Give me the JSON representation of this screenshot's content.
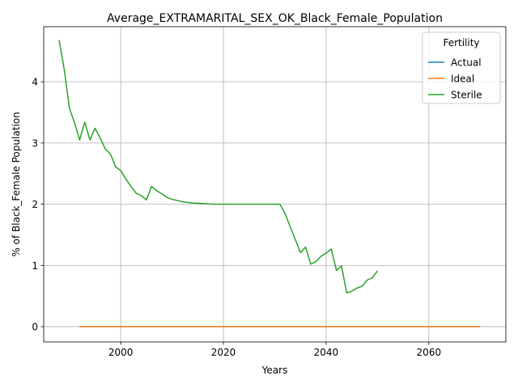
{
  "chart_data": {
    "type": "line",
    "title": "Average_EXTRAMARITAL_SEX_OK_Black_Female_Population",
    "xlabel": "Years",
    "ylabel": "% of Black_Female Population",
    "xlim": [
      1985,
      2075
    ],
    "ylim": [
      -0.25,
      4.9
    ],
    "x_ticks": [
      2000,
      2020,
      2040,
      2060
    ],
    "y_ticks": [
      0,
      1,
      2,
      3,
      4
    ],
    "grid": true,
    "legend": {
      "title": "Fertility",
      "placement": "top-right"
    },
    "series": [
      {
        "name": "Actual",
        "color": "#1f77b4",
        "x": [
          1992,
          2070
        ],
        "y": [
          0,
          0
        ]
      },
      {
        "name": "Ideal",
        "color": "#ff7f0e",
        "x": [
          1992,
          2070
        ],
        "y": [
          0,
          0
        ]
      },
      {
        "name": "Sterile",
        "color": "#2ca02c",
        "x": [
          1988,
          1989,
          1990,
          1991,
          1992,
          1993,
          1994,
          1995,
          1996,
          1997,
          1998,
          1999,
          2000,
          2001,
          2002,
          2003,
          2004,
          2005,
          2006,
          2007,
          2008,
          2009,
          2010,
          2011,
          2012,
          2013,
          2014,
          2015,
          2016,
          2017,
          2018,
          2019,
          2020,
          2022,
          2024,
          2026,
          2028,
          2030,
          2031,
          2032,
          2033,
          2034,
          2035,
          2036,
          2037,
          2038,
          2039,
          2040,
          2041,
          2042,
          2043,
          2044,
          2045,
          2046,
          2047,
          2048,
          2049,
          2050
        ],
        "y": [
          4.68,
          4.2,
          3.57,
          3.33,
          3.05,
          3.34,
          3.05,
          3.24,
          3.08,
          2.9,
          2.82,
          2.61,
          2.55,
          2.41,
          2.29,
          2.18,
          2.14,
          2.07,
          2.29,
          2.22,
          2.17,
          2.11,
          2.08,
          2.06,
          2.04,
          2.03,
          2.02,
          2.015,
          2.01,
          2.005,
          2.0,
          2.0,
          2.0,
          2.0,
          2.0,
          2.0,
          2.0,
          2.0,
          2.0,
          1.85,
          1.63,
          1.42,
          1.21,
          1.3,
          1.02,
          1.06,
          1.15,
          1.2,
          1.27,
          0.92,
          0.99,
          0.55,
          0.58,
          0.63,
          0.66,
          0.76,
          0.8,
          0.91
        ]
      }
    ]
  }
}
